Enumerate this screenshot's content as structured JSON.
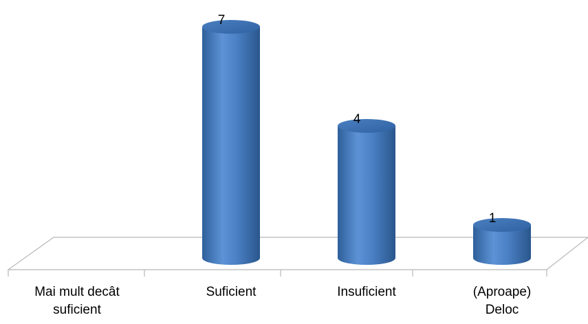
{
  "chart_data": {
    "type": "bar",
    "style": "3d-cylinder",
    "categories": [
      "Mai mult decât\nsuficient",
      "Suficient",
      "Insuficient",
      "(Aproape)\nDeloc"
    ],
    "values": [
      0,
      7,
      4,
      1
    ],
    "data_labels": [
      "",
      "7",
      "4",
      "1"
    ],
    "bar_color": "#4f81bd",
    "grid": false,
    "legend": "none",
    "title": "",
    "xlabel": "",
    "ylabel": ""
  }
}
